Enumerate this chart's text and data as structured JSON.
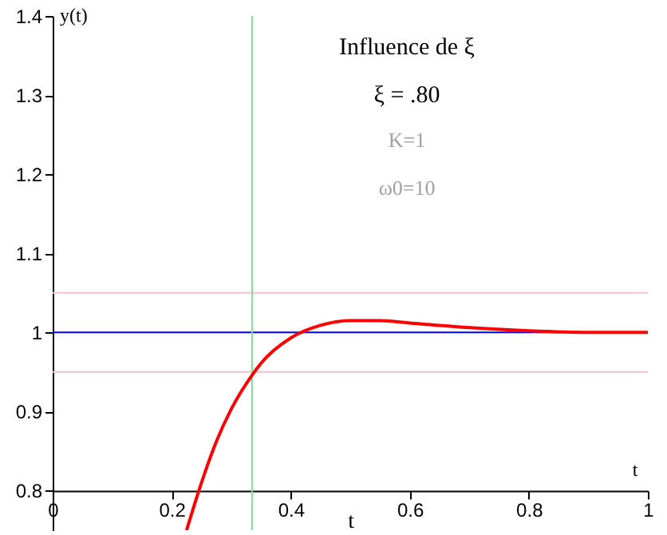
{
  "chart_data": {
    "type": "line",
    "title": "Influence de ξ",
    "subtitle": "ξ = .80",
    "xlabel": "t",
    "ylabel": "y(t)",
    "annotations": [
      "K=1",
      "ω0=10",
      "t"
    ],
    "x": [
      0.225,
      0.25,
      0.275,
      0.3,
      0.335,
      0.35,
      0.4,
      0.45,
      0.5,
      0.55,
      0.6,
      0.7,
      0.8,
      0.9,
      1.0
    ],
    "series": [
      {
        "color": "#ff0000",
        "values": [
          0.75,
          0.81,
          0.862,
          0.903,
          0.946,
          0.961,
          0.993,
          1.009,
          1.015,
          1.015,
          1.012,
          1.006,
          1.002,
          1.0,
          1.0
        ]
      }
    ],
    "xlim": [
      0,
      1
    ],
    "ylim": [
      0.75,
      1.4
    ],
    "xticks": [
      0,
      0.2,
      0.4,
      0.6,
      0.8,
      1
    ],
    "yticks": [
      0.8,
      0.9,
      1,
      1.1,
      1.2,
      1.3,
      1.4
    ],
    "ref_lines": [
      {
        "axis": "y",
        "value": 1,
        "color": "#0000ff"
      },
      {
        "axis": "y",
        "value": 1.05,
        "color": "#f4c0cc"
      },
      {
        "axis": "y",
        "value": 0.95,
        "color": "#f4c0cc"
      },
      {
        "axis": "x",
        "value": 0.335,
        "color": "#80e090"
      }
    ],
    "grid": false,
    "marker": "none",
    "line_style": "solid"
  }
}
